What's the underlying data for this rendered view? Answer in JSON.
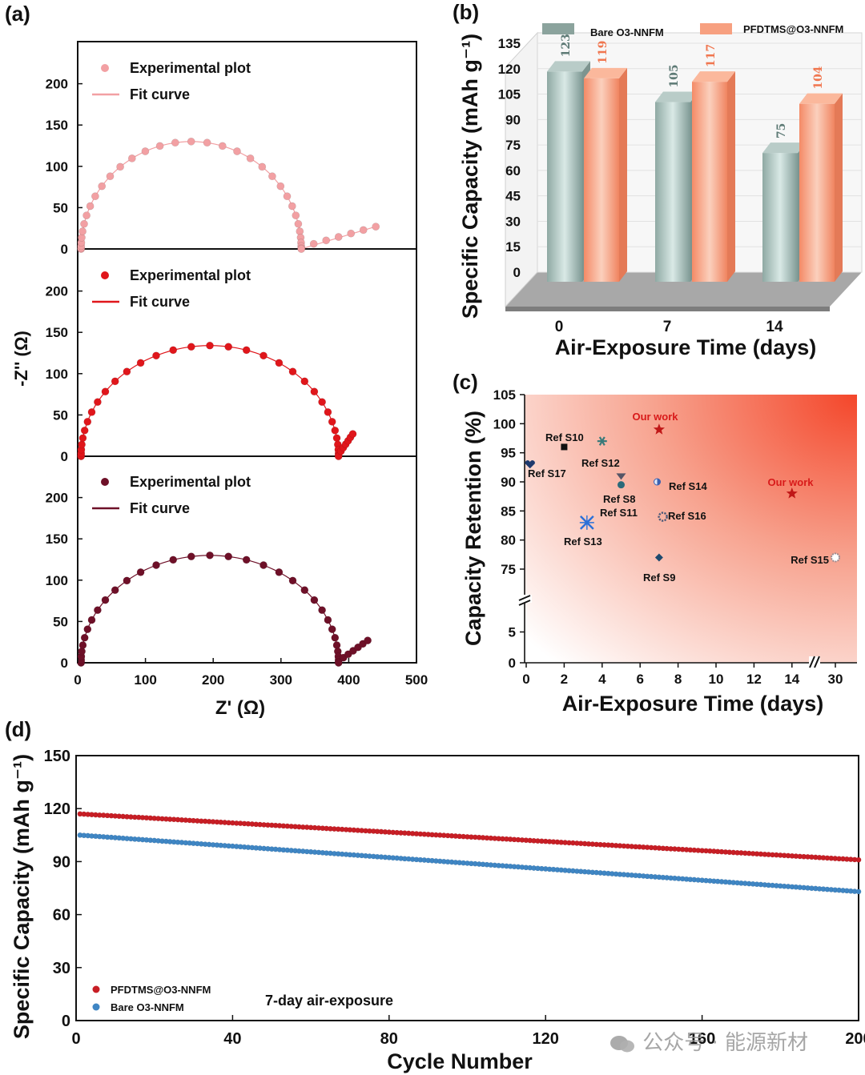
{
  "panel_labels": [
    "(a)",
    "(b)",
    "(c)",
    "(d)"
  ],
  "watermark": "公众号 · 能源新材",
  "colors": {
    "pink": "#f2a0a3",
    "red": "#e0161b",
    "maroon": "#6e1028",
    "bar_bare": "#9fb7b0",
    "bar_pfd": "#f79a76",
    "d_red": "#c81e25",
    "d_blue": "#3f86c4"
  },
  "chart_data": [
    {
      "panel": "(a)",
      "type": "scatter",
      "xlabel": "Z' (Ω)",
      "ylabel": "-Z'' (Ω)",
      "xlim": [
        0,
        500
      ],
      "x_ticks": [
        "0",
        "100",
        "200",
        "300",
        "400",
        "500"
      ],
      "y_ticks": [
        "0",
        "50",
        "100",
        "150",
        "200"
      ],
      "subplots": [
        {
          "legend": [
            "Experimental plot",
            "Fit curve"
          ],
          "color": "pink",
          "semicircle": {
            "r_start": 5,
            "r_end": 330,
            "peak": 130
          },
          "tail_end": [
            440,
            27
          ],
          "ylim": [
            0,
            250
          ]
        },
        {
          "legend": [
            "Experimental plot",
            "Fit curve"
          ],
          "color": "red",
          "semicircle": {
            "r_start": 5,
            "r_end": 385,
            "peak": 134
          },
          "tail_end": [
            406,
            27
          ],
          "ylim": [
            0,
            250
          ]
        },
        {
          "legend": [
            "Experimental plot",
            "Fit curve"
          ],
          "color": "maroon",
          "semicircle": {
            "r_start": 5,
            "r_end": 385,
            "peak": 130
          },
          "tail_end": [
            428,
            27
          ],
          "ylim": [
            0,
            250
          ]
        }
      ]
    },
    {
      "panel": "(b)",
      "type": "bar",
      "xlabel": "Air-Exposure Time (days)",
      "ylabel": "Specific Capacity (mAh g⁻¹)",
      "ylim": [
        0,
        135
      ],
      "y_ticks": [
        "0",
        "15",
        "30",
        "45",
        "60",
        "75",
        "90",
        "105",
        "120",
        "135"
      ],
      "categories": [
        "0",
        "7",
        "14"
      ],
      "series": [
        {
          "name": "Bare O3-NNFM",
          "values": [
            123,
            105,
            75
          ],
          "labels": [
            "123",
            "105",
            "75"
          ]
        },
        {
          "name": "PFDTMS@O3-NNFM",
          "values": [
            119,
            117,
            104
          ],
          "labels": [
            "119",
            "117",
            "104"
          ]
        }
      ]
    },
    {
      "panel": "(c)",
      "type": "scatter",
      "xlabel": "Air-Exposure Time (days)",
      "ylabel": "Capacity Retention (%)",
      "x_ticks": [
        "0",
        "2",
        "4",
        "6",
        "8",
        "10",
        "12",
        "14",
        "30"
      ],
      "y_ticks": [
        "0",
        "5",
        "75",
        "80",
        "85",
        "90",
        "95",
        "100",
        "105"
      ],
      "points": [
        {
          "label": "Ref S17",
          "x": 0.2,
          "y": 93,
          "marker": "heart",
          "color": "#1e3a6e"
        },
        {
          "label": "Ref S10",
          "x": 2.0,
          "y": 96,
          "marker": "square",
          "color": "#111111"
        },
        {
          "label": "Ref S12",
          "x": 4.0,
          "y": 97,
          "marker": "asterisk",
          "color": "#3a7a7a"
        },
        {
          "label": "Our work",
          "x": 7.0,
          "y": 99,
          "marker": "star",
          "color": "#c01818",
          "highlight": true
        },
        {
          "label": "Ref S8",
          "x": 5.0,
          "y": 90.5,
          "marker": "hourglass",
          "color": "#555566"
        },
        {
          "label": "Ref S11",
          "x": 5.0,
          "y": 89.5,
          "marker": "circle",
          "color": "#2a6a7a"
        },
        {
          "label": "Ref S14",
          "x": 6.9,
          "y": 90,
          "marker": "halfcircle",
          "color": "#3a60b0"
        },
        {
          "label": "Ref S13",
          "x": 3.2,
          "y": 83,
          "marker": "cross",
          "color": "#2a70d8"
        },
        {
          "label": "Ref S16",
          "x": 7.2,
          "y": 84,
          "marker": "gear",
          "color": "#4a5878"
        },
        {
          "label": "Ref S9",
          "x": 7.0,
          "y": 77,
          "marker": "diamond",
          "color": "#1e4a6e"
        },
        {
          "label": "Our work",
          "x": 14.0,
          "y": 88,
          "marker": "star",
          "color": "#c01818",
          "highlight": true
        },
        {
          "label": "Ref S15",
          "x": 30,
          "y": 77,
          "marker": "ring",
          "color": "#9a8a90"
        }
      ]
    },
    {
      "panel": "(d)",
      "type": "scatter",
      "xlabel": "Cycle Number",
      "ylabel": "Specific Capacity (mAh g⁻¹)",
      "xlim": [
        0,
        200
      ],
      "ylim": [
        0,
        150
      ],
      "x_ticks": [
        "0",
        "40",
        "80",
        "120",
        "160",
        "200"
      ],
      "y_ticks": [
        "0",
        "30",
        "60",
        "90",
        "120",
        "150"
      ],
      "annotation": "7-day air-exposure",
      "series": [
        {
          "name": "PFDTMS@O3-NNFM",
          "start": 117,
          "end": 91,
          "color": "d_red"
        },
        {
          "name": "Bare O3-NNFM",
          "start": 105,
          "end": 73,
          "color": "d_blue"
        }
      ]
    }
  ]
}
